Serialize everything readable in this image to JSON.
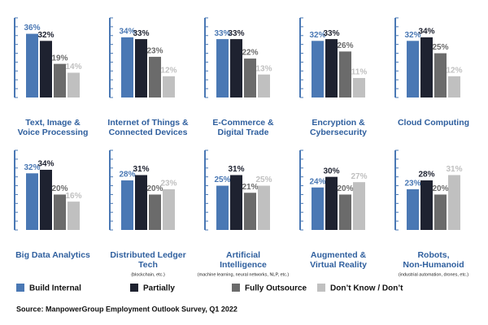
{
  "chart_data": {
    "type": "bar",
    "categories": [
      [
        "Text, Image &",
        "Voice Processing"
      ],
      [
        "Internet of Things &",
        "Connected Devices"
      ],
      [
        "E-Commerce &",
        "Digital Trade"
      ],
      [
        "Encryption &",
        "Cybersecurity"
      ],
      [
        "Cloud Computing"
      ],
      [
        "Big Data Analytics"
      ],
      [
        "Distributed Ledger",
        "Tech"
      ],
      [
        "Artificial",
        "Intelligence"
      ],
      [
        "Augmented &",
        "Virtual Reality"
      ],
      [
        "Robots,",
        "Non-Humanoid"
      ]
    ],
    "category_notes": [
      null,
      null,
      null,
      null,
      null,
      null,
      "(blockchain, etc.)",
      "(machine learning, neural networks, NLP, etc.)",
      null,
      "(industrial automation, drones, etc.)"
    ],
    "series": [
      {
        "name": "Build Internal",
        "color": "#4a78b4",
        "values": [
          36,
          34,
          33,
          32,
          32,
          32,
          28,
          25,
          24,
          23
        ],
        "value_labels": [
          "36%",
          "34%",
          "33%",
          "32%",
          "32%",
          "32%",
          "28%",
          "25%",
          "24%",
          "23%"
        ]
      },
      {
        "name": "Partially",
        "color": "#1e2230",
        "values": [
          32,
          33,
          33,
          33,
          34,
          34,
          31,
          31,
          30,
          28
        ],
        "value_labels": [
          "32%",
          "33%",
          "33%",
          "33%",
          "34%",
          "34%",
          "31%",
          "31%",
          "30%",
          "28%"
        ]
      },
      {
        "name": "Fully Outsource",
        "color": "#6b6b6b",
        "values": [
          19,
          23,
          22,
          26,
          25,
          20,
          20,
          21,
          20,
          20
        ],
        "value_labels": [
          "19%",
          "23%",
          "22%",
          "26%",
          "25%",
          "20%",
          "20%",
          "21%",
          "20%",
          "20%"
        ]
      },
      {
        "name": "Don’t Know / Don’t",
        "color": "#c0c0c0",
        "values": [
          14,
          12,
          13,
          11,
          12,
          16,
          23,
          25,
          27,
          31
        ],
        "value_labels": [
          "14%",
          "12%",
          "13%",
          "11%",
          "12%",
          "16%",
          "23%",
          "25%",
          "27%",
          "31%"
        ]
      }
    ],
    "ylim": [
      0,
      45
    ],
    "yticks": [
      0,
      5,
      10,
      15,
      20,
      25,
      30,
      35,
      40,
      45
    ],
    "source": "Source: ManpowerGroup Employment Outlook Survey, Q1 2022"
  }
}
